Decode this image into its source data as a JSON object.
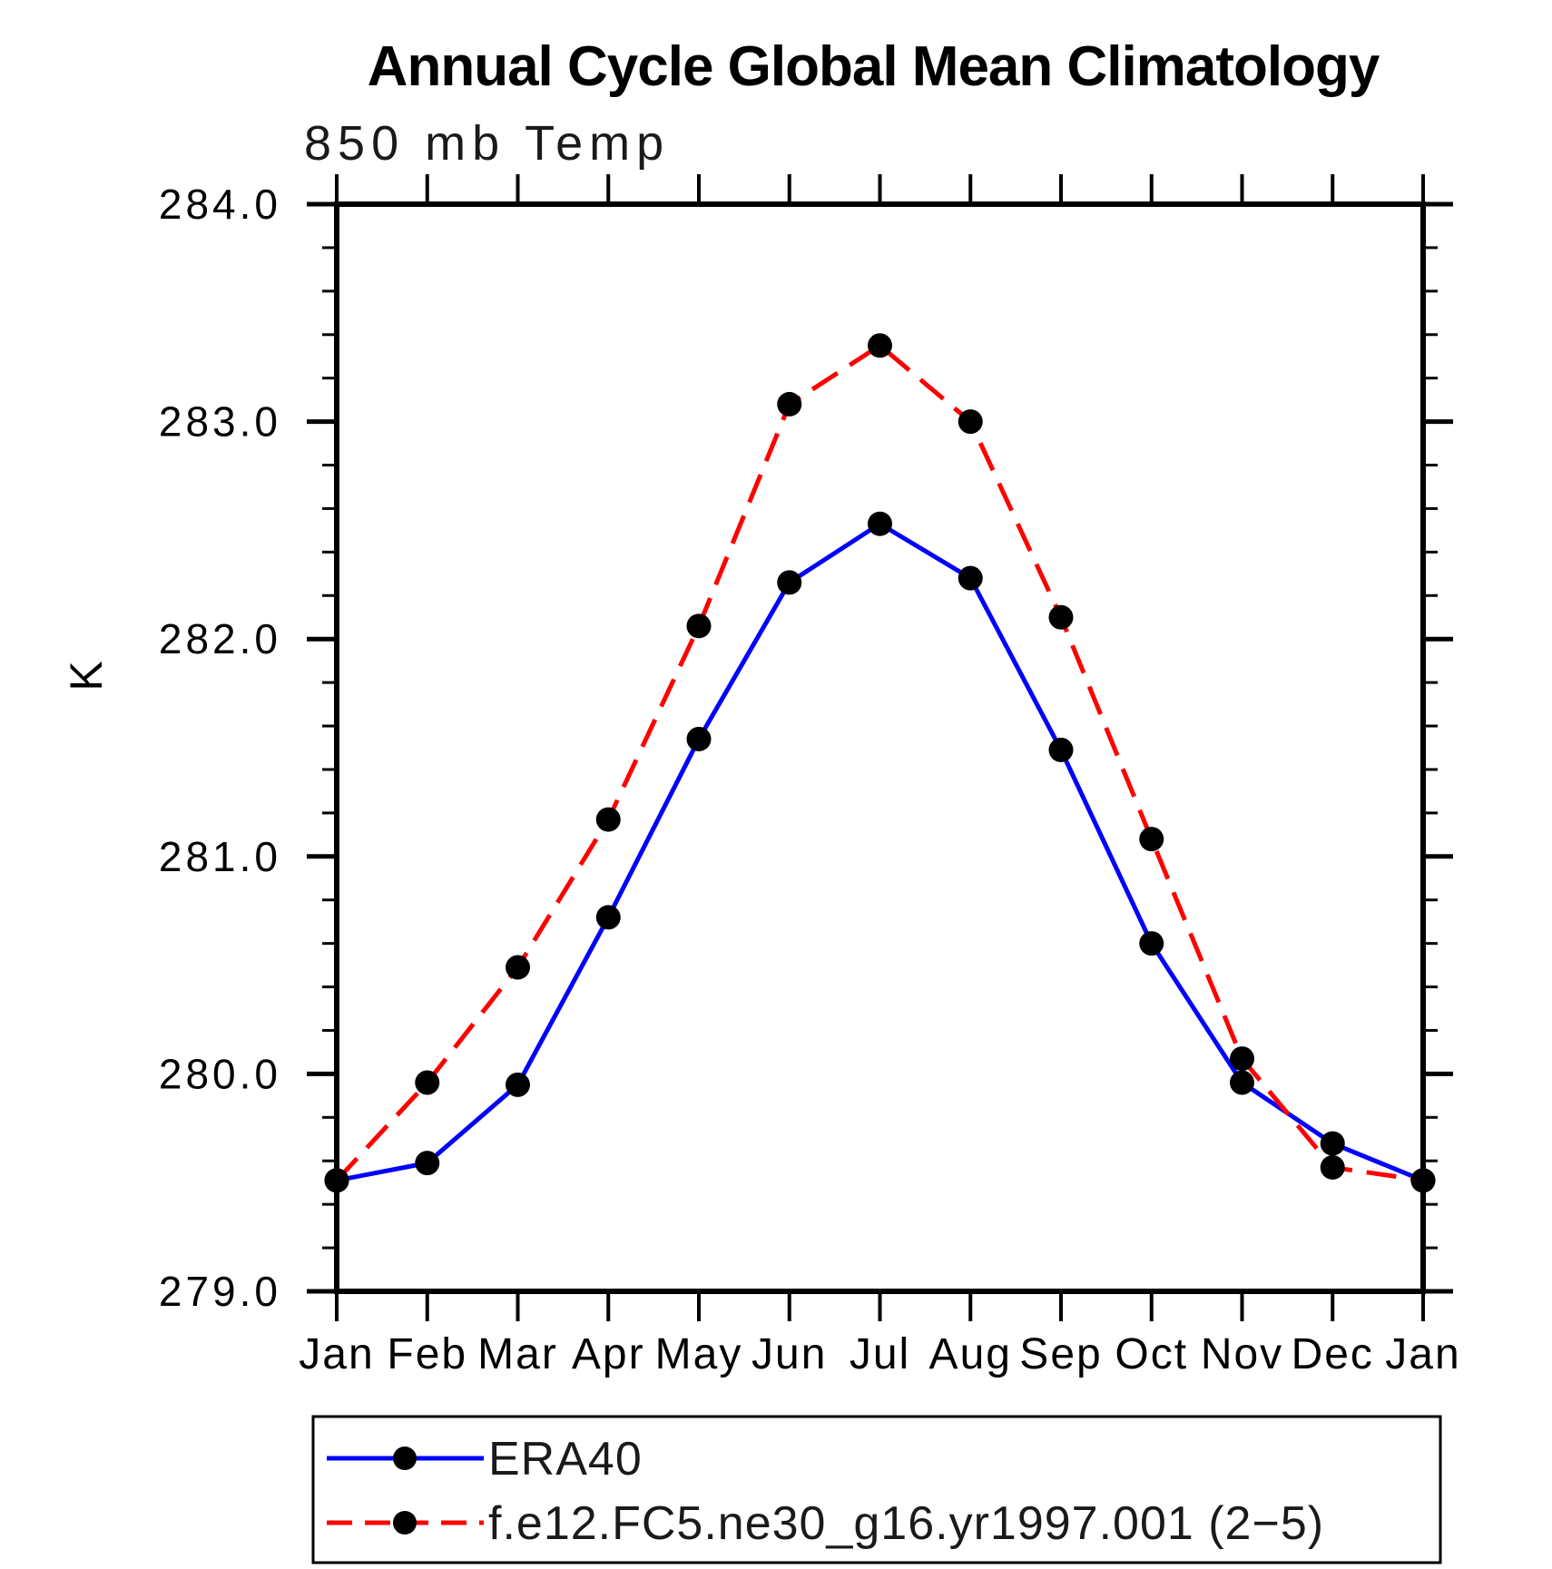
{
  "title": "Annual Cycle Global Mean Climatology",
  "subtitle": "850 mb Temp",
  "ylabel": "K",
  "chart_data": {
    "type": "line",
    "categories": [
      "Jan",
      "Feb",
      "Mar",
      "Apr",
      "May",
      "Jun",
      "Jul",
      "Aug",
      "Sep",
      "Oct",
      "Nov",
      "Dec",
      "Jan"
    ],
    "series": [
      {
        "name": "ERA40",
        "color": "#0000ff",
        "line_style": "solid",
        "values": [
          279.51,
          279.59,
          279.95,
          280.72,
          281.54,
          282.26,
          282.53,
          282.28,
          281.49,
          280.6,
          279.96,
          279.68,
          279.51
        ]
      },
      {
        "name": "f.e12.FC5.ne30_g16.yr1997.001 (2−5)",
        "color": "#ff0000",
        "line_style": "dashed",
        "values": [
          279.51,
          279.96,
          280.49,
          281.17,
          282.06,
          283.08,
          283.35,
          283.0,
          282.1,
          281.08,
          280.07,
          279.57,
          279.51
        ]
      }
    ],
    "ylim": [
      279.0,
      284.0
    ],
    "ytick_major": [
      "279.0",
      "280.0",
      "281.0",
      "282.0",
      "283.0",
      "284.0"
    ],
    "ytick_minor_step": 0.2,
    "marker": "filled-circle",
    "marker_color": "#000000",
    "grid": false,
    "legend_position": "bottom-left-box"
  }
}
